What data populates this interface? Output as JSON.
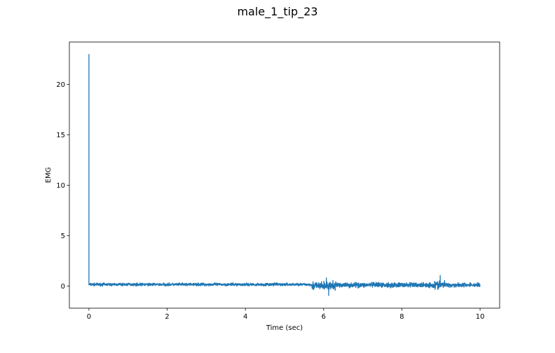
{
  "chart_data": {
    "type": "line",
    "title": "male_1_tip_23",
    "xlabel": "Time (sec)",
    "ylabel": "EMG",
    "xlim": [
      -0.5,
      10.5
    ],
    "ylim": [
      -2.2,
      24.2
    ],
    "xticks": [
      0,
      2,
      4,
      6,
      8,
      10
    ],
    "yticks": [
      0,
      5,
      10,
      15,
      20
    ],
    "xtick_labels": [
      "0",
      "2",
      "4",
      "6",
      "8",
      "10"
    ],
    "ytick_labels": [
      "0",
      "5",
      "10",
      "15",
      "20"
    ],
    "grid": false,
    "series": [
      {
        "color": "#1f77b4",
        "peak": {
          "x": 0.0,
          "y": 23.0
        },
        "segments": [
          {
            "x_start": 0.0,
            "x_end": 5.7,
            "center": 0.15,
            "amplitude": 0.2
          },
          {
            "x_start": 5.7,
            "x_end": 6.3,
            "center": 0.0,
            "amplitude": 0.6
          },
          {
            "x_start": 6.3,
            "x_end": 8.8,
            "center": 0.1,
            "amplitude": 0.35
          },
          {
            "x_start": 8.8,
            "x_end": 9.1,
            "center": 0.1,
            "amplitude": 0.6
          },
          {
            "x_start": 9.1,
            "x_end": 10.0,
            "center": 0.1,
            "amplitude": 0.3
          }
        ],
        "extremes": [
          {
            "x": 6.13,
            "y": -0.95
          },
          {
            "x": 6.07,
            "y": 0.8
          },
          {
            "x": 8.98,
            "y": 1.05
          }
        ]
      }
    ]
  }
}
